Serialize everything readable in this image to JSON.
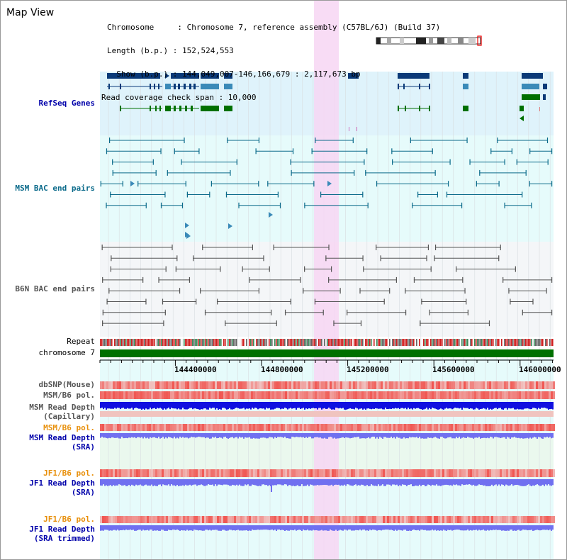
{
  "title": "Map View",
  "header": {
    "line1": "Chromosome     : Chromosome 7, reference assembly (C57BL/6J) (Build 37)",
    "line2": "Length (b.p.) : 152,524,553",
    "line3": "  Show (b.p.) : 144,049,007-146,166,679 : 2,117,673 bp",
    "line4": "Read coverage check span : 10,000"
  },
  "tracks": {
    "refseq": "RefSeq Genes",
    "msm_bac": "MSM BAC end pairs",
    "b6n_bac": "B6N BAC end pairs",
    "repeat": "Repeat",
    "chromosome": "chromosome 7",
    "dbsnp": "dbSNP(Mouse)",
    "msm_b6_pol": "MSM/B6 pol.",
    "msm_read_depth_cap_1": "MSM Read Depth",
    "msm_read_depth_cap_2": "(Capillary)",
    "msm_b6_pol_2": "MSM/B6 pol.",
    "msm_read_depth_sra_1": "MSM Read Depth",
    "msm_read_depth_sra_2": "(SRA)",
    "jf1_b6_pol": "JF1/B6 pol.",
    "jf1_read_depth_sra_1": "JF1 Read Depth",
    "jf1_read_depth_sra_2": "(SRA)",
    "jf1_b6_pol_2": "JF1/B6 pol.",
    "jf1_read_depth_trim_1": "JF1 Read Depth",
    "jf1_read_depth_trim_2": "(SRA trimmed)"
  },
  "axis": {
    "ticks": [
      "144400000",
      "144800000",
      "145200000",
      "145600000",
      "146000000"
    ]
  },
  "colors": {
    "refseq_bg": "#dff3fb",
    "msm_bg": "#e6fbfb",
    "b6n_bg": "#f4f6f8",
    "lower_bg": "#e6fbfb",
    "highlight": "#f7d6f3",
    "chromosome": "#007000",
    "gene_dark": "#0a3a78",
    "gene_mid": "#3a8ab8",
    "gene_green": "#007000",
    "bac_msm": "#0a6a8a",
    "bac_b6n": "#555555",
    "pol_red": "#f0302a",
    "depth_blue": "#1010e0",
    "depth_light": "#7070f0"
  }
}
